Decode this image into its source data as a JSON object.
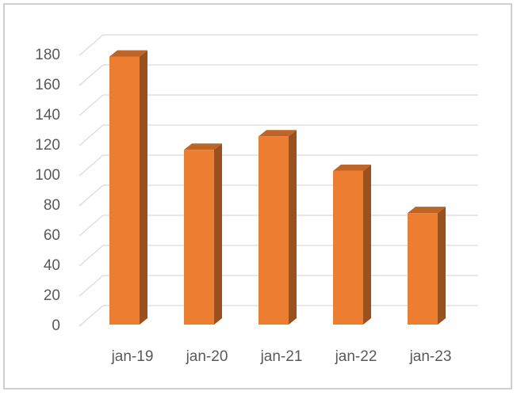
{
  "chart_data": {
    "type": "bar3d",
    "categories": [
      "jan-19",
      "jan-20",
      "jan-21",
      "jan-22",
      "jan-23"
    ],
    "values": [
      175,
      113,
      122,
      99,
      71
    ],
    "color": "#ed7d31",
    "ylim": [
      0,
      180
    ],
    "yticks": [
      0,
      20,
      40,
      60,
      80,
      100,
      120,
      140,
      160,
      180
    ],
    "grid": true
  }
}
